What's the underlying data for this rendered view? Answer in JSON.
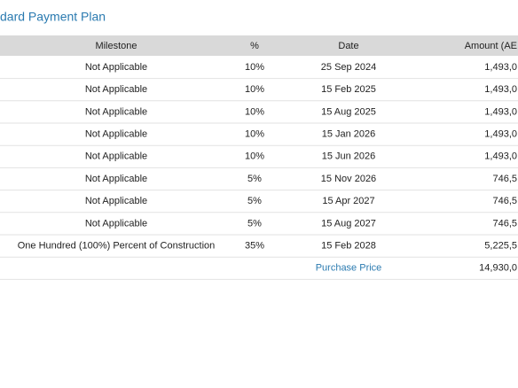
{
  "header": {
    "title": "dard Payment Plan"
  },
  "table": {
    "columns": [
      "Milestone",
      "%",
      "Date",
      "Amount (AE"
    ],
    "rows": [
      [
        "Not Applicable",
        "10%",
        "25 Sep 2024",
        "1,493,0"
      ],
      [
        "Not Applicable",
        "10%",
        "15 Feb 2025",
        "1,493,0"
      ],
      [
        "Not Applicable",
        "10%",
        "15 Aug 2025",
        "1,493,0"
      ],
      [
        "Not Applicable",
        "10%",
        "15 Jan 2026",
        "1,493,0"
      ],
      [
        "Not Applicable",
        "10%",
        "15 Jun 2026",
        "1,493,0"
      ],
      [
        "Not Applicable",
        "5%",
        "15 Nov 2026",
        "746,5"
      ],
      [
        "Not Applicable",
        "5%",
        "15 Apr 2027",
        "746,5"
      ],
      [
        "Not Applicable",
        "5%",
        "15 Aug 2027",
        "746,5"
      ],
      [
        "One Hundred (100%) Percent of Construction",
        "35%",
        "15 Feb 2028",
        "5,225,5"
      ]
    ],
    "total": {
      "label": "Purchase Price",
      "amount": "14,930,0"
    }
  }
}
